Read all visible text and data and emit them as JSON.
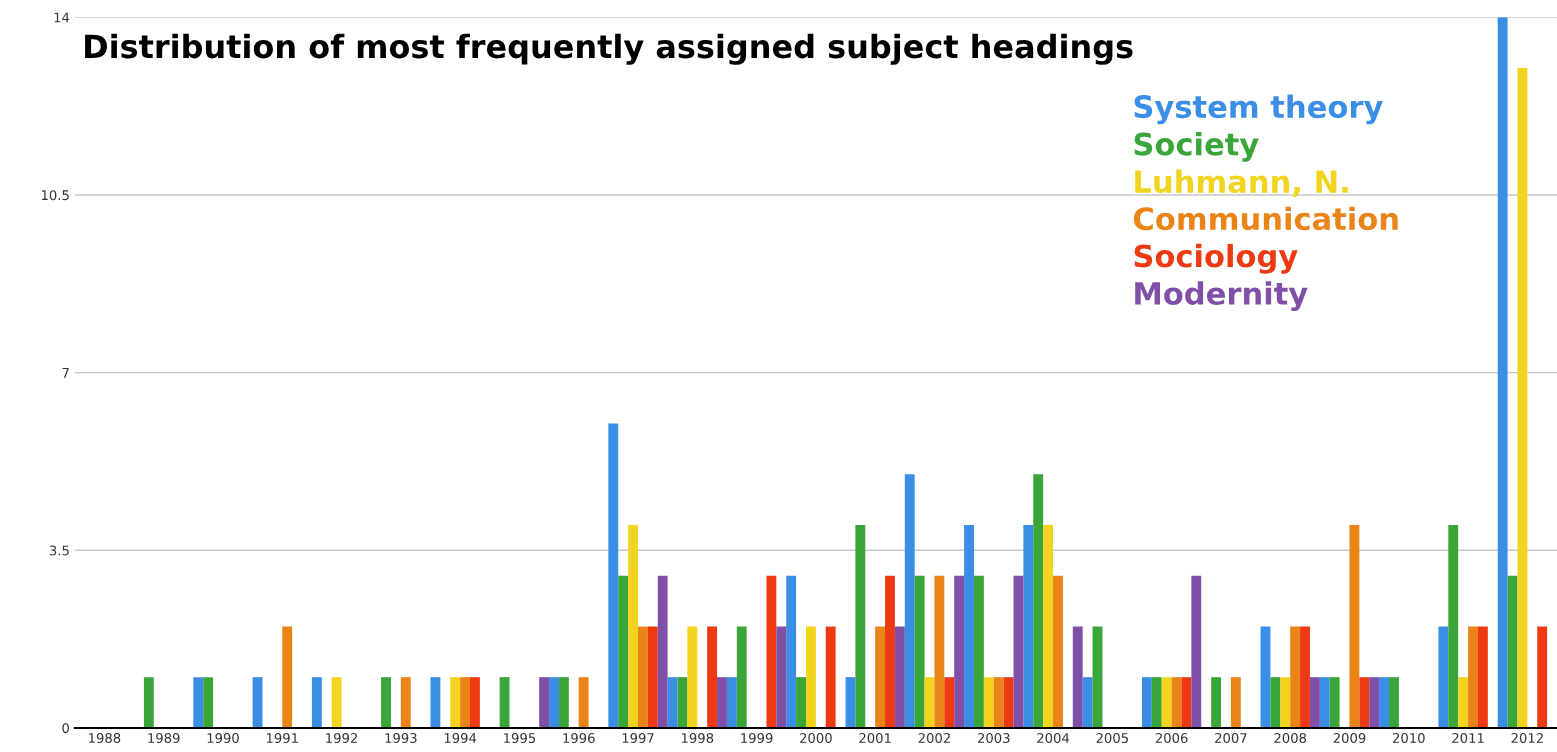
{
  "chart_data": {
    "type": "bar",
    "title": "Distribution of most frequently assigned subject headings",
    "categories": [
      "1988",
      "1989",
      "1990",
      "1991",
      "1992",
      "1993",
      "1994",
      "1995",
      "1996",
      "1997",
      "1998",
      "1999",
      "2000",
      "2001",
      "2002",
      "2003",
      "2004",
      "2005",
      "2006",
      "2007",
      "2008",
      "2009",
      "2010",
      "2011",
      "2012"
    ],
    "series": [
      {
        "name": "System theory",
        "color": "#3a8ee6",
        "values": [
          0,
          0,
          1,
          1,
          1,
          0,
          1,
          0,
          1,
          6,
          1,
          1,
          3,
          1,
          5,
          4,
          4,
          1,
          1,
          0,
          2,
          1,
          1,
          2,
          14
        ]
      },
      {
        "name": "Society",
        "color": "#3aa63a",
        "values": [
          0,
          1,
          1,
          0,
          0,
          1,
          0,
          1,
          1,
          3,
          1,
          2,
          1,
          4,
          3,
          3,
          5,
          2,
          1,
          1,
          1,
          1,
          1,
          4,
          3
        ]
      },
      {
        "name": "Luhmann, N.",
        "color": "#f2d41f",
        "values": [
          0,
          0,
          0,
          0,
          1,
          0,
          1,
          0,
          0,
          4,
          2,
          0,
          2,
          0,
          1,
          1,
          4,
          0,
          1,
          0,
          1,
          0,
          0,
          1,
          13
        ]
      },
      {
        "name": "Communication",
        "color": "#ea8419",
        "values": [
          0,
          0,
          0,
          2,
          0,
          1,
          1,
          0,
          1,
          2,
          0,
          0,
          0,
          2,
          3,
          1,
          3,
          0,
          1,
          1,
          2,
          4,
          0,
          2,
          0
        ]
      },
      {
        "name": "Sociology",
        "color": "#ee3a12",
        "values": [
          0,
          0,
          0,
          0,
          0,
          0,
          1,
          0,
          0,
          2,
          2,
          3,
          2,
          3,
          1,
          1,
          0,
          0,
          1,
          0,
          2,
          1,
          0,
          2,
          2
        ]
      },
      {
        "name": "Modernity",
        "color": "#8050a8",
        "values": [
          0,
          0,
          0,
          0,
          0,
          0,
          0,
          1,
          0,
          3,
          1,
          2,
          0,
          2,
          3,
          3,
          2,
          0,
          3,
          0,
          1,
          1,
          0,
          0,
          0
        ]
      }
    ],
    "ylim": [
      0,
      14
    ],
    "yticks": [
      0,
      3.5,
      7,
      10.5,
      14
    ],
    "grid": "y",
    "legend": "top right"
  }
}
